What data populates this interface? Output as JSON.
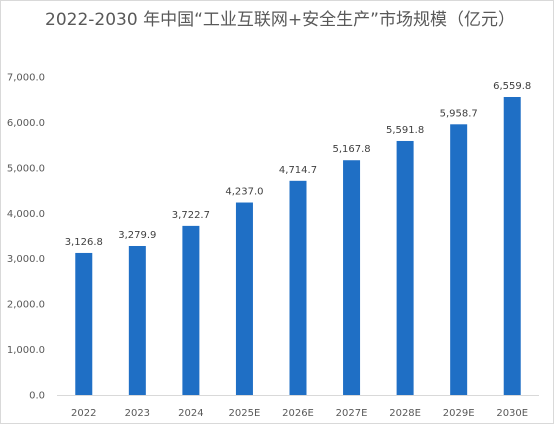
{
  "chart_data": {
    "type": "bar",
    "title": "2022-2030 年中国“工业互联网+安全生产”市场规模（亿元）",
    "categories": [
      "2022",
      "2023",
      "2024",
      "2025E",
      "2026E",
      "2027E",
      "2028E",
      "2029E",
      "2030E"
    ],
    "values": [
      3126.8,
      3279.9,
      3722.7,
      4237.0,
      4714.7,
      5167.8,
      5591.8,
      5958.7,
      6559.8
    ],
    "value_labels": [
      "3,126.8",
      "3,279.9",
      "3,722.7",
      "4,237.0",
      "4,714.7",
      "5,167.8",
      "5,591.8",
      "5,958.7",
      "6,559.8"
    ],
    "y_ticks": [
      "0.0",
      "1,000.0",
      "2,000.0",
      "3,000.0",
      "4,000.0",
      "5,000.0",
      "6,000.0",
      "7,000.0"
    ],
    "ylim": [
      0,
      7000
    ],
    "grid": false,
    "legend": "none",
    "bar_color": "#1f6fc5"
  }
}
